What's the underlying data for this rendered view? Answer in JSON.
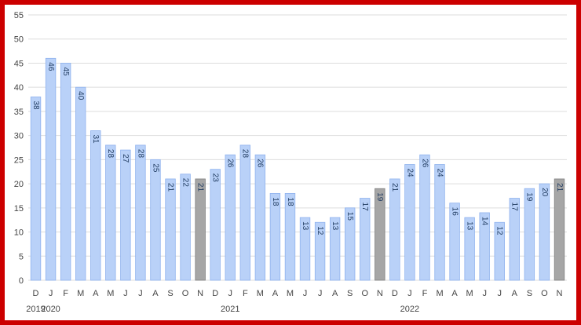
{
  "chart_data": {
    "type": "bar",
    "title": "",
    "xlabel": "",
    "ylabel": "",
    "ylim": [
      0,
      55
    ],
    "yticks": [
      0,
      5,
      10,
      15,
      20,
      25,
      30,
      35,
      40,
      45,
      50,
      55
    ],
    "grid": true,
    "legend": "none",
    "categories": [
      "D",
      "J",
      "F",
      "M",
      "A",
      "M",
      "J",
      "J",
      "A",
      "S",
      "O",
      "N",
      "D",
      "J",
      "F",
      "M",
      "A",
      "M",
      "J",
      "J",
      "A",
      "S",
      "O",
      "N",
      "D",
      "J",
      "F",
      "M",
      "A",
      "M",
      "J",
      "J",
      "A",
      "S",
      "O",
      "N"
    ],
    "years": [
      {
        "label": "2019",
        "index": 0
      },
      {
        "label": "2020",
        "index": 1
      },
      {
        "label": "2021",
        "index": 13
      },
      {
        "label": "2022",
        "index": 25
      }
    ],
    "values": [
      38,
      46,
      45,
      40,
      31,
      28,
      27,
      28,
      25,
      21,
      22,
      21,
      23,
      26,
      28,
      26,
      18,
      18,
      13,
      12,
      13,
      15,
      17,
      19,
      21,
      24,
      26,
      24,
      16,
      13,
      14,
      12,
      17,
      19,
      20,
      21
    ],
    "value_labels": [
      "38",
      "46",
      "45",
      "40",
      "31",
      "28",
      "27",
      "28",
      "25",
      "21",
      "22",
      "21",
      "23",
      "26",
      "28",
      "26",
      "18",
      "18",
      "13",
      "12",
      "13",
      "15",
      "17",
      "19",
      "21",
      "24",
      "26",
      "24",
      "16",
      "13",
      "14",
      "12",
      "17",
      "19",
      "20",
      "21"
    ],
    "highlight_indices": [
      11,
      23,
      35
    ],
    "colors": {
      "bar": "#b9d1f8",
      "bar_edge": "#8fb2ee",
      "highlight": "#a6a6a6",
      "highlight_edge": "#808080",
      "grid": "#dddddd",
      "frame": "#cc0000"
    }
  }
}
